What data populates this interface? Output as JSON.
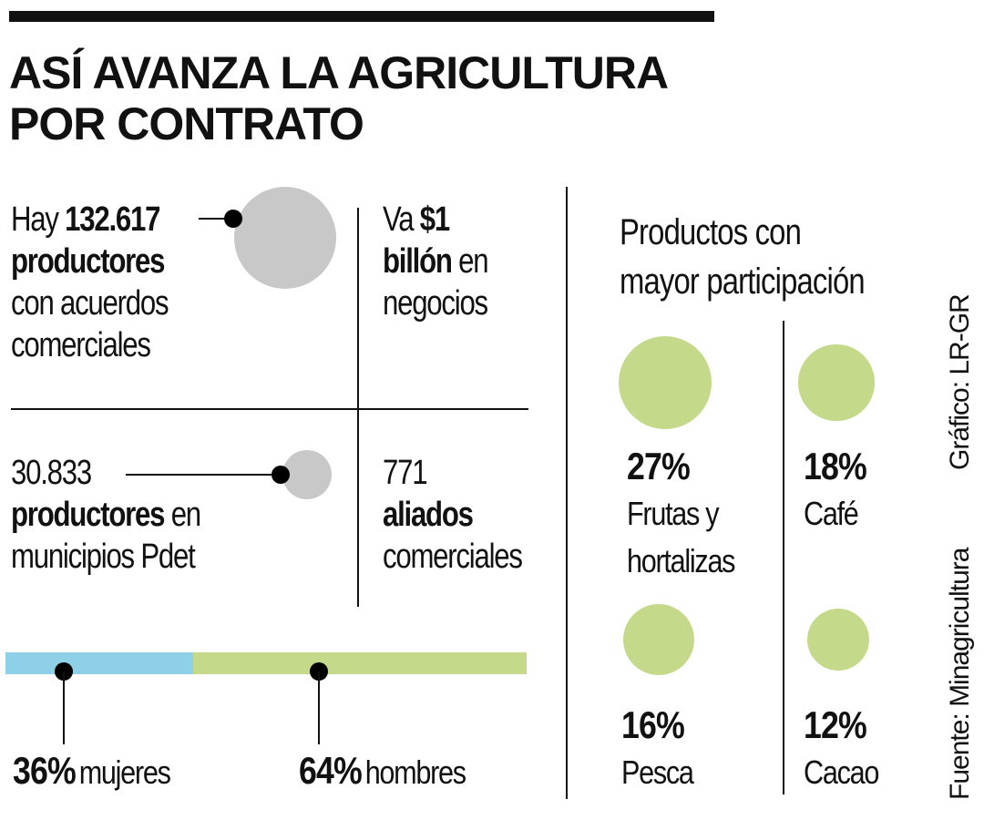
{
  "title_line1": "ASÍ AVANZA LA AGRICULTURA",
  "title_line2": "POR CONTRATO",
  "stats": {
    "productores_pre": "Hay",
    "productores_num": "132.617",
    "productores_bold": "productores",
    "productores_line3": "con acuerdos",
    "productores_line4": "comerciales",
    "negocios_pre": "Va",
    "negocios_num": "$1",
    "negocios_bold": "billón",
    "negocios_post": "en",
    "negocios_line3": "negocios",
    "pdet_num": "30.833",
    "pdet_bold": "productores",
    "pdet_post": "en",
    "pdet_line3": "municipios Pdet",
    "aliados_num": "771",
    "aliados_bold": "aliados",
    "aliados_line3": "comerciales"
  },
  "gender": {
    "women_pct": "36%",
    "women_label": "mujeres",
    "men_pct": "64%",
    "men_label": "hombres"
  },
  "products_title_line1": "Productos con",
  "products_title_line2": "mayor participación",
  "source": "Fuente: Minagricultura",
  "credit": "Gráfico: LR-GR",
  "colors": {
    "gray": "#c8c8c8",
    "green": "#c5d98a",
    "blue": "#8dd0e8",
    "ink": "#111111"
  },
  "chart_data": {
    "type": "bubble",
    "title": "Productos con mayor participación",
    "categories": [
      "Frutas y hortalizas",
      "Café",
      "Pesca",
      "Cacao"
    ],
    "values": [
      27,
      18,
      16,
      12
    ],
    "value_labels": [
      "27%",
      "18%",
      "16%",
      "12%"
    ],
    "label_lines": [
      [
        "Frutas y",
        "hortalizas"
      ],
      [
        "Café"
      ],
      [
        "Pesca"
      ],
      [
        "Cacao"
      ]
    ],
    "gender_split": {
      "categories": [
        "mujeres",
        "hombres"
      ],
      "values": [
        36,
        64
      ]
    }
  }
}
